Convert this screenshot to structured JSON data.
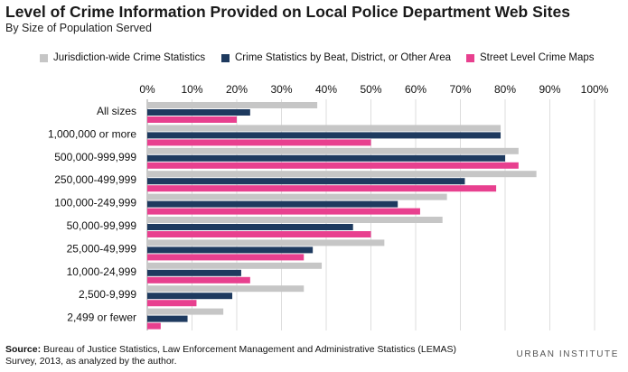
{
  "title": "Level of Crime Information Provided on Local Police Department Web Sites",
  "subtitle": "By Size of Population Served",
  "source_label": "Source:",
  "source_text": "Bureau of Justice Statistics, Law Enforcement Management and Administrative Statistics (LEMAS) Survey, 2013, as analyzed by the author.",
  "brand": "URBAN INSTITUTE",
  "colors": {
    "jurisdiction": "#c6c6c6",
    "beat": "#1e3a5f",
    "street": "#e8408f",
    "gridline": "#dddddd"
  },
  "chart_data": {
    "type": "bar",
    "orientation": "horizontal",
    "title": "Level of Crime Information Provided on Local Police Department Web Sites",
    "subtitle": "By Size of Population Served",
    "categories": [
      "All sizes",
      "1,000,000 or more",
      "500,000-999,999",
      "250,000-499,999",
      "100,000-249,999",
      "50,000-99,999",
      "25,000-49,999",
      "10,000-24,999",
      "2,500-9,999",
      "2,499 or fewer"
    ],
    "series": [
      {
        "name": "Jurisdiction-wide Crime Statistics",
        "color": "#c6c6c6",
        "values": [
          38,
          79,
          83,
          87,
          67,
          66,
          53,
          39,
          35,
          17
        ]
      },
      {
        "name": "Crime Statistics by Beat, District, or Other Area",
        "color": "#1e3a5f",
        "values": [
          23,
          79,
          80,
          71,
          56,
          46,
          37,
          21,
          19,
          9
        ]
      },
      {
        "name": "Street Level Crime Maps",
        "color": "#e8408f",
        "values": [
          20,
          50,
          83,
          78,
          61,
          50,
          35,
          23,
          11,
          3
        ]
      }
    ],
    "xlim": [
      0,
      100
    ],
    "xticks": [
      "0%",
      "10%",
      "20%",
      "30%",
      "40%",
      "50%",
      "60%",
      "70%",
      "80%",
      "90%",
      "100%"
    ],
    "grid": true,
    "legend_position": "top"
  }
}
